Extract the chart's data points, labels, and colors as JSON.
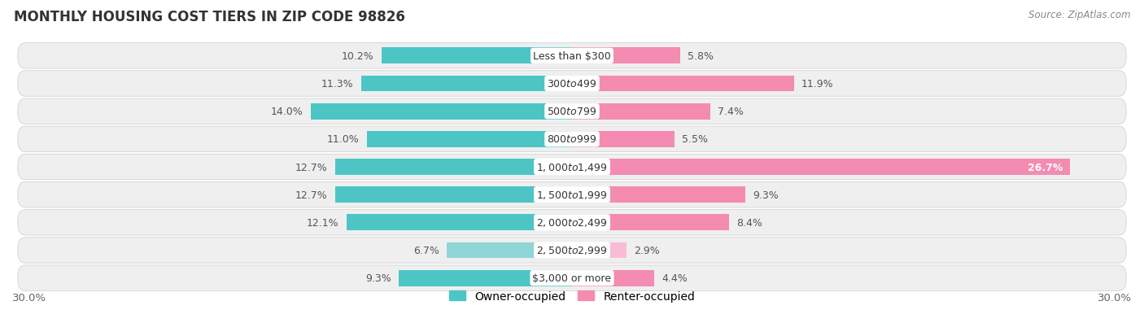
{
  "title": "MONTHLY HOUSING COST TIERS IN ZIP CODE 98826",
  "source": "Source: ZipAtlas.com",
  "categories": [
    "Less than $300",
    "$300 to $499",
    "$500 to $799",
    "$800 to $999",
    "$1,000 to $1,499",
    "$1,500 to $1,999",
    "$2,000 to $2,499",
    "$2,500 to $2,999",
    "$3,000 or more"
  ],
  "owner_values": [
    10.2,
    11.3,
    14.0,
    11.0,
    12.7,
    12.7,
    12.1,
    6.7,
    9.3
  ],
  "renter_values": [
    5.8,
    11.9,
    7.4,
    5.5,
    26.7,
    9.3,
    8.4,
    2.9,
    4.4
  ],
  "owner_color": "#4DC5C5",
  "renter_color": "#F48BB0",
  "owner_color_light": "#90D5D5",
  "renter_color_light": "#F8BDD4",
  "bg_row_color": "#EFEFEF",
  "bg_color": "#FFFFFF",
  "axis_max": 30.0,
  "label_fontsize": 9.0,
  "title_fontsize": 12,
  "bar_height": 0.58,
  "legend_label_owner": "Owner-occupied",
  "legend_label_renter": "Renter-occupied",
  "light_row_index": 7
}
